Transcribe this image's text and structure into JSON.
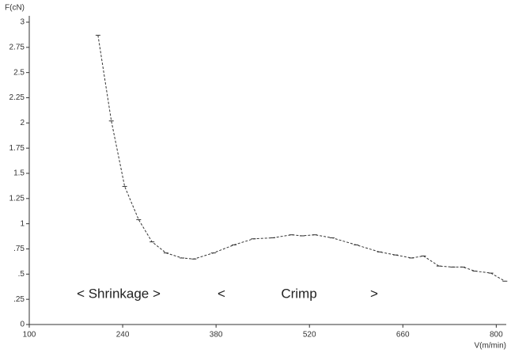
{
  "chart_data": {
    "type": "line",
    "xlabel": "V(m/min)",
    "ylabel": "F(cN)",
    "x": [
      203,
      223,
      243,
      264,
      284,
      305,
      329,
      347,
      376,
      407,
      436,
      465,
      493,
      509,
      528,
      554,
      590,
      625,
      649,
      673,
      691,
      714,
      735,
      750,
      768,
      792,
      813
    ],
    "series": [
      {
        "color": "#333333",
        "values": [
          2.87,
          2.02,
          1.37,
          1.04,
          0.82,
          0.71,
          0.66,
          0.65,
          0.71,
          0.79,
          0.85,
          0.86,
          0.89,
          0.88,
          0.89,
          0.86,
          0.79,
          0.72,
          0.69,
          0.66,
          0.68,
          0.58,
          0.57,
          0.57,
          0.53,
          0.51,
          0.43
        ]
      }
    ],
    "xlim": [
      100,
      815
    ],
    "ylim": [
      0,
      3
    ],
    "xticks": [
      100,
      240,
      380,
      520,
      660,
      800
    ],
    "yticks": [
      0,
      {
        "value": 0.25,
        "label": ".25"
      },
      {
        "value": 0.5,
        "label": ".5"
      },
      {
        "value": 0.75,
        "label": ".75"
      },
      1,
      1.25,
      1.5,
      1.75,
      2,
      2.25,
      2.5,
      2.75,
      3
    ],
    "annotations": [
      "< Shrinkage >",
      "<",
      "Crimp",
      ">"
    ]
  }
}
